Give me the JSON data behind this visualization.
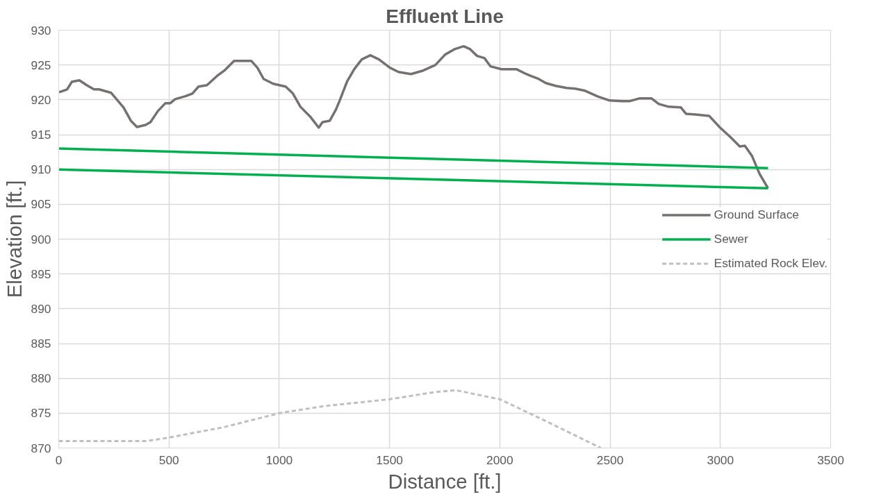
{
  "chart_data": {
    "type": "line",
    "title": "Effluent Line",
    "xlabel": "Distance [ft.]",
    "ylabel": "Elevation [ft.]",
    "xlim": [
      0,
      3500
    ],
    "ylim": [
      870,
      930
    ],
    "xticks": [
      0,
      500,
      1000,
      1500,
      2000,
      2500,
      3000,
      3500
    ],
    "yticks": [
      870,
      875,
      880,
      885,
      890,
      895,
      900,
      905,
      910,
      915,
      920,
      925,
      930
    ],
    "grid": true,
    "legend": "right",
    "series": [
      {
        "name": "Ground Surface",
        "color": "#767171",
        "line_style": "solid",
        "x": [
          2,
          38,
          60,
          94,
          127,
          160,
          183,
          238,
          294,
          327,
          355,
          394,
          416,
          450,
          483,
          505,
          528,
          572,
          606,
          634,
          672,
          717,
          751,
          795,
          839,
          873,
          901,
          929,
          973,
          1029,
          1062,
          1096,
          1140,
          1179,
          1196,
          1229,
          1257,
          1274,
          1307,
          1340,
          1374,
          1413,
          1452,
          1502,
          1541,
          1597,
          1652,
          1708,
          1752,
          1797,
          1836,
          1864,
          1897,
          1930,
          1958,
          2008,
          2075,
          2120,
          2176,
          2209,
          2254,
          2303,
          2342,
          2387,
          2443,
          2498,
          2554,
          2587,
          2632,
          2688,
          2721,
          2766,
          2821,
          2844,
          2888,
          2949,
          2999,
          3044,
          3088,
          3111,
          3144,
          3177,
          3216
        ],
        "values": [
          921.1,
          921.5,
          922.6,
          922.8,
          922.1,
          921.5,
          921.5,
          921.0,
          918.9,
          917.0,
          916.1,
          916.4,
          916.8,
          918.4,
          919.5,
          919.5,
          920.1,
          920.5,
          920.9,
          921.9,
          922.1,
          923.4,
          924.2,
          925.6,
          925.6,
          925.6,
          924.6,
          923.0,
          922.3,
          921.9,
          920.9,
          919.0,
          917.6,
          916.0,
          916.8,
          917.0,
          918.6,
          919.9,
          922.6,
          924.4,
          925.8,
          926.4,
          925.8,
          924.6,
          924.0,
          923.7,
          924.2,
          925.0,
          926.5,
          927.3,
          927.7,
          927.3,
          926.3,
          926.0,
          924.8,
          924.4,
          924.4,
          923.7,
          923.0,
          922.4,
          922.0,
          921.7,
          921.6,
          921.3,
          920.5,
          919.9,
          919.8,
          919.8,
          920.2,
          920.2,
          919.4,
          919.0,
          918.9,
          918.0,
          917.9,
          917.7,
          916.0,
          914.7,
          913.3,
          913.4,
          911.9,
          909.4,
          907.3
        ]
      },
      {
        "name": "Sewer",
        "color": "#00b050",
        "line_style": "solid",
        "x": [
          0,
          3216
        ],
        "values": [
          913.0,
          910.2
        ]
      },
      {
        "color": "#00b050",
        "line_style": "solid",
        "x": [
          0,
          3216
        ],
        "values": [
          910.0,
          907.3
        ]
      },
      {
        "name": "Estimated Rock Elev.",
        "color": "#bfbfbf",
        "line_style": "dashed",
        "x": [
          0,
          400,
          500,
          750,
          1000,
          1200,
          1500,
          1700,
          1800,
          2000,
          2200,
          2458
        ],
        "values": [
          871.0,
          871.0,
          871.5,
          873.0,
          875.0,
          876.0,
          877.0,
          878.0,
          878.3,
          877.0,
          874.0,
          870.0
        ]
      }
    ]
  }
}
